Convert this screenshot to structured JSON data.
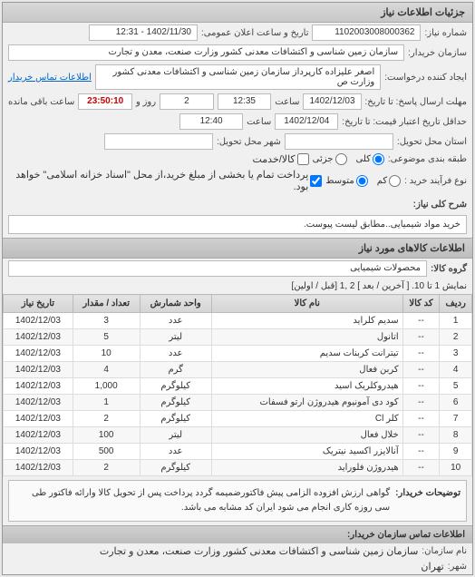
{
  "header": {
    "title": "جزئیات اطلاعات نیاز"
  },
  "info": {
    "need_no_label": "شماره نیاز:",
    "need_no": "1102003008000362",
    "announce_label": "تاریخ و ساعت اعلان عمومی:",
    "announce_value": "1402/11/30 - 12:31",
    "buyer_label": "سازمان خریدار:",
    "buyer_value": "سازمان زمین شناسی و اکتشافات معدنی کشور وزارت صنعت، معدن و تجارت",
    "creator_label": "ایجاد کننده درخواست:",
    "creator_value": "اصغر علیزاده کارپرداز سازمان زمین شناسی و اکتشافات معدنی کشور وزارت ص",
    "contact_link": "اطلاعات تماس خریدار",
    "deadline_send_label": "مهلت ارسال پاسخ: تا تاریخ:",
    "deadline_send_date": "1402/12/03",
    "time_label": "ساعت",
    "deadline_send_time": "12:35",
    "remaining_label": "روز و",
    "remaining_days": "2",
    "remaining_time": "23:50:10",
    "remaining_suffix": "ساعت باقی مانده",
    "validity_label": "حداقل تاریخ اعتبار قیمت: تا تاریخ:",
    "validity_date": "1402/12/04",
    "validity_time": "12:40",
    "delivery_state_label": "استان محل تحویل:",
    "delivery_city_label": "شهر محل تحویل:",
    "pkg_label": "طبقه بندی موضوعی:",
    "pkg_all": "کلی",
    "pkg_partial": "جزئی",
    "cash_label": "کالا/خدمت",
    "purchase_type_label": "نوع فرآیند خرید :",
    "purchase_type_low": "کم",
    "purchase_type_mid": "متوسط",
    "purchase_note": "پرداخت تمام یا بخشی از مبلغ خرید،از محل \"اسناد خزانه اسلامی\" خواهد بود."
  },
  "need_desc": {
    "label": "شرح کلی نیاز:",
    "text": "خرید مواد شیمیایی..مطابق لیست پیوست."
  },
  "goods": {
    "section": "اطلاعات کالاهای مورد نیاز",
    "group_label": "گروه کالا:",
    "group_value": "محصولات شیمیایی",
    "pager_text": "نمایش 1 تا 10.",
    "pager_links": "[ آخرین / بعد ] 2 ,1 [قبل / اولین]",
    "columns": [
      "ردیف",
      "کد کالا",
      "نام کالا",
      "واحد شمارش",
      "تعداد / مقدار",
      "تاریخ نیاز"
    ],
    "rows": [
      [
        "1",
        "--",
        "سدیم کلراید",
        "عدد",
        "3",
        "1402/12/03"
      ],
      [
        "2",
        "--",
        "اتانول",
        "لیتر",
        "5",
        "1402/12/03"
      ],
      [
        "3",
        "--",
        "تیترانت کربنات سدیم",
        "عدد",
        "10",
        "1402/12/03"
      ],
      [
        "4",
        "--",
        "کربن فعال",
        "گرم",
        "4",
        "1402/12/03"
      ],
      [
        "5",
        "--",
        "هیدروکلریک اسید",
        "کیلوگرم",
        "1,000",
        "1402/12/03"
      ],
      [
        "6",
        "--",
        "کود دی آمونیوم هیدروژن ارتو فسفات",
        "کیلوگرم",
        "1",
        "1402/12/03"
      ],
      [
        "7",
        "--",
        "کلر Cl",
        "کیلوگرم",
        "2",
        "1402/12/03"
      ],
      [
        "8",
        "--",
        "خلال فعال",
        "لیتر",
        "100",
        "1402/12/03"
      ],
      [
        "9",
        "--",
        "آنالایزر اکسید نیتریک",
        "عدد",
        "500",
        "1402/12/03"
      ],
      [
        "10",
        "--",
        "هیدروژن فلوراید",
        "کیلوگرم",
        "2",
        "1402/12/03"
      ]
    ]
  },
  "note": {
    "label": "توضیحات خریدار:",
    "text": "گواهی ارزش افزوده الزامی پیش فاکتورضمیمه گردد پرداخت پس از تحویل کالا وارائه فاکتور طی سی روزه کاری انجام می شود ایران کد مشابه می باشد."
  },
  "contact": {
    "header": "اطلاعات تماس سازمان خریدار:",
    "org_label": "نام سازمان:",
    "org_value": "سازمان زمین شناسی و اکتشافات معدنی کشور وزارت صنعت، معدن و تجارت",
    "city_label": "شهر:",
    "city_value": "تهران"
  }
}
